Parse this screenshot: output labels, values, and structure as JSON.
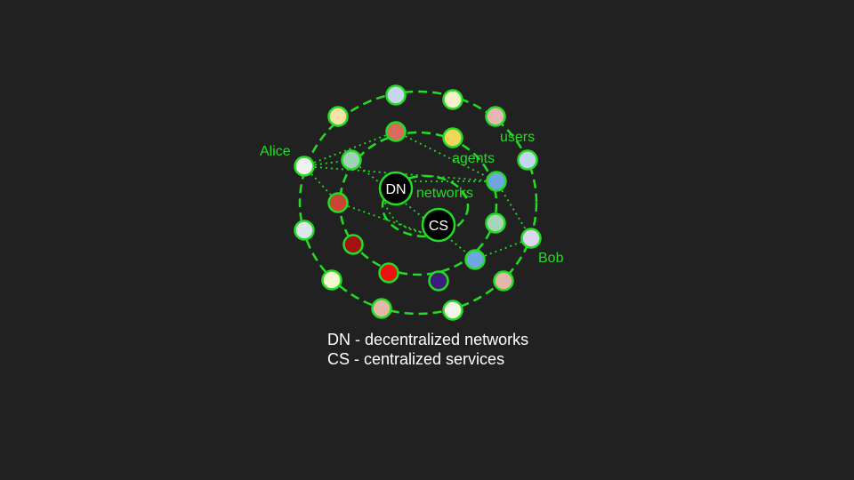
{
  "labels": {
    "alice": "Alice",
    "bob": "Bob",
    "users": "users",
    "agents": "agents",
    "networks": "networks",
    "dn": "DN",
    "cs": "CS"
  },
  "legend": {
    "line1": "DN - decentralized networks",
    "line2": "CS - centralized services"
  },
  "colors": {
    "background": "#212121",
    "accent": "#22dd22",
    "hub_fill": "#000000",
    "legend_text": "#ffffff"
  },
  "users_ring": {
    "node_colors": [
      "#c9d4ee",
      "#f5f2c8",
      "#e4b8b0",
      "#c2d6ee",
      "#dcd6ee",
      "#e4b8a8",
      "#f5f5e8",
      "#e4b8a8",
      "#f6f6d0",
      "#dde6ea",
      "#f2f2f2",
      "#f6e2a6"
    ]
  },
  "agents_ring": {
    "node_colors": [
      "#d96a5e",
      "#f2d75a",
      "#6fa6e0",
      "#a8d4b8",
      "#6fa6e0",
      "#3c1d7a",
      "#ee1111",
      "#a31111",
      "#cc4433",
      "#9fd0b8"
    ]
  }
}
